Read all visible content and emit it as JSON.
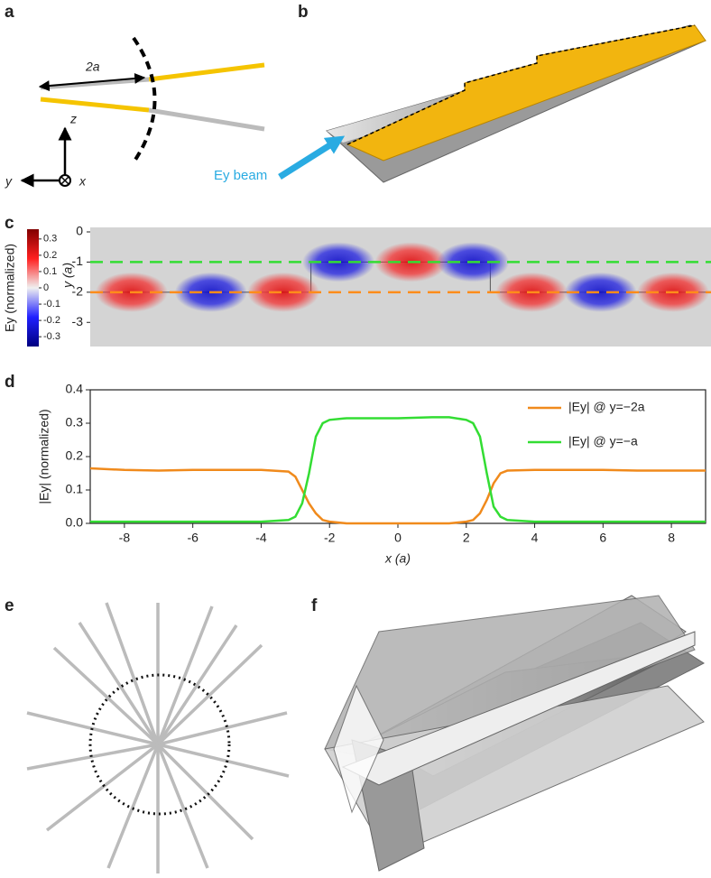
{
  "panels": [
    "a",
    "b",
    "c",
    "d",
    "e",
    "f"
  ],
  "panel_a": {
    "length_label": "2a",
    "axis_labels": [
      "z",
      "y",
      "x"
    ]
  },
  "panel_b": {
    "beam_label": "Ey beam"
  },
  "panel_c": {
    "colorbar_label": "Ey (normalized)",
    "clim": [
      -0.36,
      0.36
    ],
    "cticks": [
      0.3,
      0.2,
      0.1,
      0,
      -0.1,
      -0.2,
      -0.3
    ],
    "ylabel": "y (a)",
    "xlim": [
      -9,
      9
    ],
    "ylim": [
      -3.8,
      0.15
    ],
    "yticks": [
      0,
      -1,
      -2,
      -3
    ],
    "guides": [
      {
        "y": -1,
        "color": "#33dd33"
      },
      {
        "y": -2,
        "color": "#ff8c1a"
      }
    ],
    "field": [
      {
        "x": -7.8,
        "y": -2,
        "value": 0.3
      },
      {
        "x": -5.5,
        "y": -2,
        "value": -0.3
      },
      {
        "x": -3.4,
        "y": -2,
        "value": 0.3
      },
      {
        "x": -1.8,
        "y": -1,
        "value": -0.3
      },
      {
        "x": 0.3,
        "y": -1,
        "value": 0.3
      },
      {
        "x": 2.1,
        "y": -1,
        "value": -0.3
      },
      {
        "x": 3.8,
        "y": -2,
        "value": 0.3
      },
      {
        "x": 5.8,
        "y": -2,
        "value": -0.3
      },
      {
        "x": 7.9,
        "y": -2,
        "value": 0.3
      }
    ]
  },
  "chart_data": {
    "type": "line",
    "xlabel": "x (a)",
    "ylabel": "|Ey| (normalized)",
    "x": [
      -9,
      -8,
      -7,
      -6,
      -5,
      -4,
      -3.2,
      -3,
      -2.8,
      -2.6,
      -2.4,
      -2.2,
      -2,
      -1.5,
      -1,
      0,
      1,
      1.5,
      2,
      2.2,
      2.4,
      2.6,
      2.8,
      3,
      3.2,
      4,
      5,
      6,
      7,
      8,
      9
    ],
    "series": [
      {
        "name": "|Ey| @ y=−2a",
        "color": "#f08a1c",
        "values": [
          0.165,
          0.16,
          0.158,
          0.16,
          0.16,
          0.16,
          0.155,
          0.14,
          0.1,
          0.06,
          0.03,
          0.01,
          0.005,
          0,
          0,
          0,
          0,
          0,
          0.005,
          0.01,
          0.03,
          0.07,
          0.12,
          0.15,
          0.158,
          0.16,
          0.16,
          0.16,
          0.158,
          0.158,
          0.158
        ]
      },
      {
        "name": "|Ey| @ y=−a",
        "color": "#33dd33",
        "values": [
          0.005,
          0.005,
          0.005,
          0.005,
          0.005,
          0.005,
          0.01,
          0.02,
          0.06,
          0.15,
          0.26,
          0.3,
          0.31,
          0.315,
          0.315,
          0.315,
          0.318,
          0.318,
          0.31,
          0.3,
          0.26,
          0.15,
          0.05,
          0.02,
          0.01,
          0.005,
          0.005,
          0.005,
          0.005,
          0.005,
          0.005
        ]
      }
    ],
    "xlim": [
      -9,
      9
    ],
    "ylim": [
      0,
      0.4
    ],
    "xticks": [
      -8,
      -6,
      -4,
      -2,
      0,
      2,
      4,
      6,
      8
    ],
    "yticks": [
      {
        "value": 0,
        "label": "0.0"
      },
      0.1,
      0.2,
      0.3,
      0.4
    ]
  }
}
